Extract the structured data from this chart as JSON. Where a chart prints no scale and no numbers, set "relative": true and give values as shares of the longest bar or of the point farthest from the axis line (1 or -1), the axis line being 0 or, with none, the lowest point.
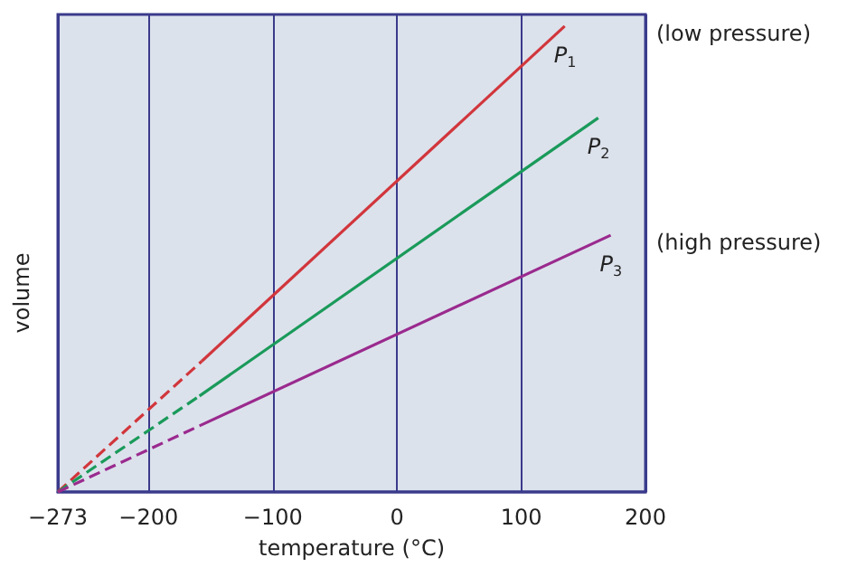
{
  "chart_data": {
    "type": "line",
    "xlabel": "temperature (°C)",
    "ylabel": "volume",
    "relative": true,
    "xlim": [
      -273,
      200
    ],
    "xticks": [
      -273,
      -200,
      -100,
      0,
      100,
      200
    ],
    "grid": "x",
    "legend": false,
    "tick_labels": "x",
    "marker": "none",
    "series": [
      {
        "color": "#d1363c",
        "x": [
          -273,
          -157
        ],
        "values": [
          0,
          0.281
        ],
        "line_style": "dashed"
      },
      {
        "name": "P$_{1}$",
        "color": "#d1363c",
        "x": [
          -157,
          135
        ],
        "values": [
          0.281,
          1
        ],
        "line_style": "solid"
      },
      {
        "color": "#1a9a5a",
        "x": [
          -273,
          -159
        ],
        "values": [
          0,
          0.206
        ],
        "line_style": "dashed"
      },
      {
        "name": "P$_{2}$",
        "color": "#1a9a5a",
        "x": [
          -159,
          162
        ],
        "values": [
          0.206,
          0.803
        ],
        "line_style": "solid"
      },
      {
        "color": "#9a2a8e",
        "x": [
          -273,
          -159
        ],
        "values": [
          0,
          0.142
        ],
        "line_style": "dashed"
      },
      {
        "name": "P$_{3}$",
        "color": "#9a2a8e",
        "x": [
          -159,
          172
        ],
        "values": [
          0.142,
          0.551
        ],
        "line_style": "solid"
      }
    ],
    "annotations": [
      "(low pressure)",
      "(high pressure)"
    ]
  }
}
